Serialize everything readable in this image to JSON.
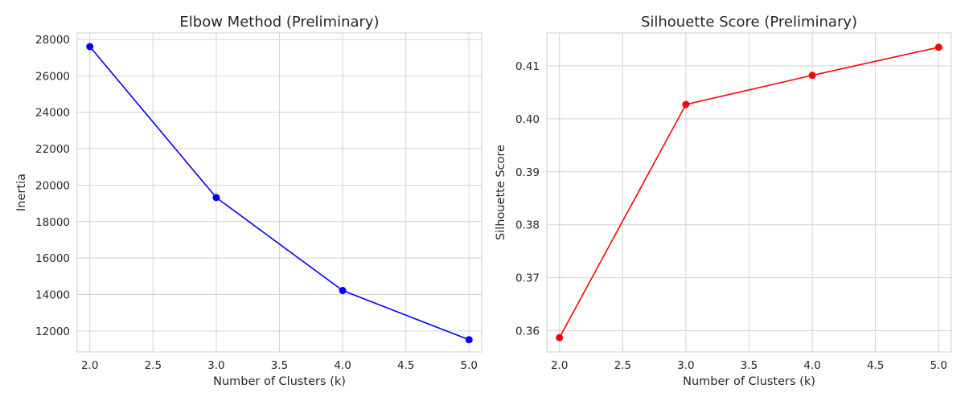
{
  "chart_data": [
    {
      "type": "line",
      "title": "Elbow Method (Preliminary)",
      "xlabel": "Number of Clusters (k)",
      "ylabel": "Inertia",
      "x": [
        2,
        3,
        4,
        5
      ],
      "series": [
        {
          "values": [
            27600,
            19320,
            14220,
            11520
          ],
          "color": "#0000ff",
          "marker": "circle"
        }
      ],
      "xlim": [
        1.9,
        5.1
      ],
      "ylim": [
        10850,
        28350
      ],
      "xticks": [
        2.0,
        2.5,
        3.0,
        3.5,
        4.0,
        4.5,
        5.0
      ],
      "xtick_labels": [
        "2.0",
        "2.5",
        "3.0",
        "3.5",
        "4.0",
        "4.5",
        "5.0"
      ],
      "yticks": [
        12000,
        14000,
        16000,
        18000,
        20000,
        22000,
        24000,
        26000,
        28000
      ],
      "ytick_labels": [
        "12000",
        "14000",
        "16000",
        "18000",
        "20000",
        "22000",
        "24000",
        "26000",
        "28000"
      ],
      "grid": true,
      "legend": "none"
    },
    {
      "type": "line",
      "title": "Silhouette Score (Preliminary)",
      "xlabel": "Number of Clusters (k)",
      "ylabel": "Silhouette Score",
      "x": [
        2,
        3,
        4,
        5
      ],
      "series": [
        {
          "values": [
            0.3587,
            0.4027,
            0.4082,
            0.4135
          ],
          "color": "#ff0000",
          "marker": "circle"
        }
      ],
      "xlim": [
        1.9,
        5.1
      ],
      "ylim": [
        0.356,
        0.4162
      ],
      "xticks": [
        2.0,
        2.5,
        3.0,
        3.5,
        4.0,
        4.5,
        5.0
      ],
      "xtick_labels": [
        "2.0",
        "2.5",
        "3.0",
        "3.5",
        "4.0",
        "4.5",
        "5.0"
      ],
      "yticks": [
        0.36,
        0.37,
        0.38,
        0.39,
        0.4,
        0.41
      ],
      "ytick_labels": [
        "0.36",
        "0.37",
        "0.38",
        "0.39",
        "0.40",
        "0.41"
      ],
      "grid": true,
      "legend": "none"
    }
  ]
}
